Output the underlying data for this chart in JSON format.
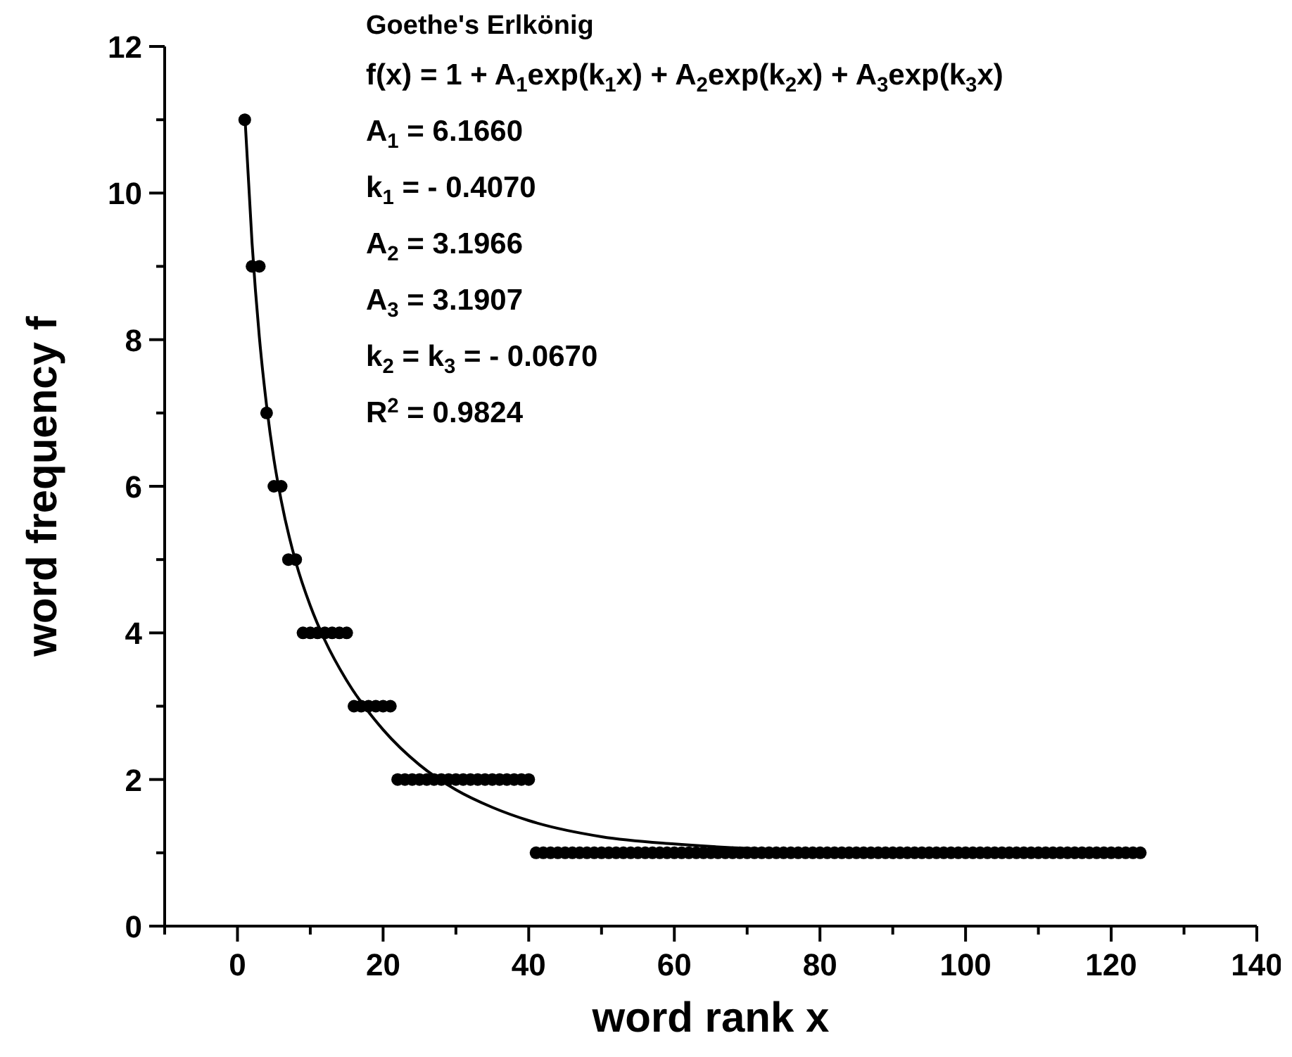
{
  "chart_data": {
    "type": "scatter",
    "title": "Goethe's Erlkönig",
    "xlabel": "word rank x",
    "ylabel": "word frequency f",
    "annotations": [
      "f(x) = 1 + A$_{1}$exp(k$_{1}$x) + A$_{2}$exp(k$_{2}$x) + A$_{3}$exp(k$_{3}$x)",
      "A$_{1}$ = 6.1660",
      "k$_{1}$ = - 0.4070",
      "A$_{2}$ = 3.1966",
      "A$_{3}$ = 3.1907",
      "k$_{2}$ = k$_{3}$ = - 0.0670",
      "R$^{2}$ = 0.9824"
    ],
    "xlim": [
      -10,
      140
    ],
    "ylim": [
      0,
      12
    ],
    "xticks": [
      {
        "value": -10,
        "label": null
      },
      0,
      {
        "value": 10,
        "label": null
      },
      20,
      {
        "value": 30,
        "label": null
      },
      40,
      {
        "value": 50,
        "label": null
      },
      60,
      {
        "value": 70,
        "label": null
      },
      80,
      {
        "value": 90,
        "label": null
      },
      100,
      {
        "value": 110,
        "label": null
      },
      120,
      {
        "value": 130,
        "label": null
      },
      140
    ],
    "yticks": [
      0,
      {
        "value": 1,
        "label": null
      },
      2,
      {
        "value": 3,
        "label": null
      },
      4,
      {
        "value": 5,
        "label": null
      },
      6,
      {
        "value": 7,
        "label": null
      },
      8,
      {
        "value": 9,
        "label": null
      },
      10,
      {
        "value": 11,
        "label": null
      },
      12
    ],
    "grid": false,
    "marker": "circle",
    "series": [
      {
        "color": "#000000",
        "x": [
          1,
          2,
          3,
          4,
          5,
          6,
          7,
          8,
          9,
          10,
          11,
          12,
          13,
          14,
          15,
          16,
          17,
          18,
          19,
          20,
          21,
          22,
          23,
          24,
          25,
          26,
          27,
          28,
          29,
          30,
          31,
          32,
          33,
          34,
          35,
          36,
          37,
          38,
          39,
          40,
          41,
          42,
          43,
          44,
          45,
          46,
          47,
          48,
          49,
          50,
          51,
          52,
          53,
          54,
          55,
          56,
          57,
          58,
          59,
          60,
          61,
          62,
          63,
          64,
          65,
          66,
          67,
          68,
          69,
          70,
          71,
          72,
          73,
          74,
          75,
          76,
          77,
          78,
          79,
          80,
          81,
          82,
          83,
          84,
          85,
          86,
          87,
          88,
          89,
          90,
          91,
          92,
          93,
          94,
          95,
          96,
          97,
          98,
          99,
          100,
          101,
          102,
          103,
          104,
          105,
          106,
          107,
          108,
          109,
          110,
          111,
          112,
          113,
          114,
          115,
          116,
          117,
          118,
          119,
          120,
          121,
          122,
          123,
          124
        ],
        "values": [
          11,
          9,
          9,
          7,
          6,
          6,
          5,
          5,
          4,
          4,
          4,
          4,
          4,
          4,
          4,
          3,
          3,
          3,
          3,
          3,
          3,
          2,
          2,
          2,
          2,
          2,
          2,
          2,
          2,
          2,
          2,
          2,
          2,
          2,
          2,
          2,
          2,
          2,
          2,
          2,
          1,
          1,
          1,
          1,
          1,
          1,
          1,
          1,
          1,
          1,
          1,
          1,
          1,
          1,
          1,
          1,
          1,
          1,
          1,
          1,
          1,
          1,
          1,
          1,
          1,
          1,
          1,
          1,
          1,
          1,
          1,
          1,
          1,
          1,
          1,
          1,
          1,
          1,
          1,
          1,
          1,
          1,
          1,
          1,
          1,
          1,
          1,
          1,
          1,
          1,
          1,
          1,
          1,
          1,
          1,
          1,
          1,
          1,
          1,
          1,
          1,
          1,
          1,
          1,
          1,
          1,
          1,
          1,
          1,
          1,
          1,
          1,
          1,
          1,
          1,
          1,
          1,
          1,
          1,
          1,
          1,
          1,
          1,
          1
        ]
      },
      {
        "type": "line",
        "color": "#000000",
        "marker": "none",
        "line_style": "solid",
        "x": [
          1,
          2,
          3,
          4,
          5,
          6,
          8,
          10,
          12,
          15,
          20,
          25,
          30,
          35,
          40,
          50,
          60,
          70,
          80,
          100,
          124
        ],
        "values": [
          11.08,
          9.32,
          8.04,
          7.1,
          6.37,
          5.81,
          4.97,
          4.37,
          3.9,
          3.35,
          2.68,
          2.2,
          1.86,
          1.62,
          1.44,
          1.22,
          1.12,
          1.06,
          1.03,
          1.01,
          1.0
        ]
      }
    ]
  }
}
